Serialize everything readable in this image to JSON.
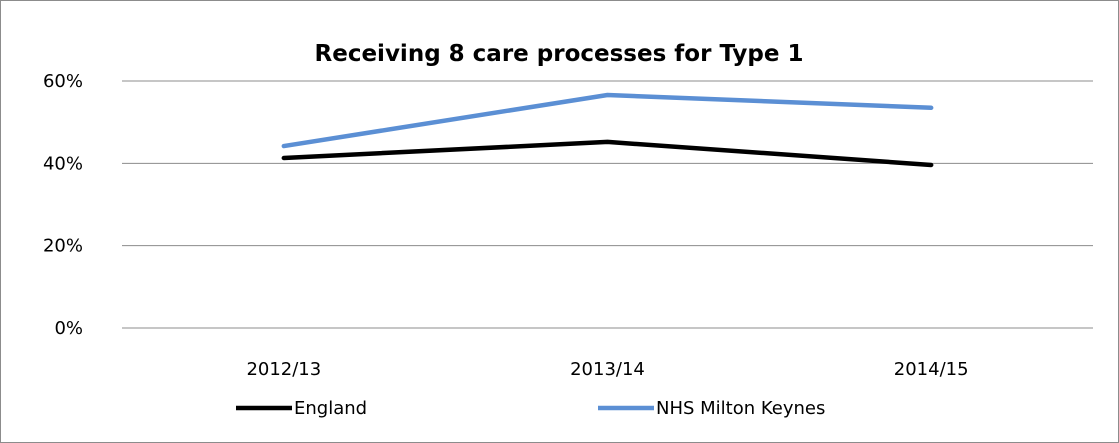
{
  "chart_data": {
    "type": "line",
    "title": "Receiving 8 care processes for Type 1",
    "xlabel": "",
    "ylabel": "",
    "categories": [
      "2012/13",
      "2013/14",
      "2014/15"
    ],
    "ylim": [
      0,
      60
    ],
    "yticks": [
      0,
      20,
      40,
      60
    ],
    "ytick_labels": [
      "0%",
      "20%",
      "40%",
      "60%"
    ],
    "grid": true,
    "legend_position": "bottom",
    "series": [
      {
        "name": "England",
        "color": "#000000",
        "values": [
          41.3,
          45.2,
          39.6
        ]
      },
      {
        "name": "NHS Milton Keynes",
        "color": "#5b8fd4",
        "values": [
          44.2,
          56.6,
          53.5
        ]
      }
    ]
  }
}
